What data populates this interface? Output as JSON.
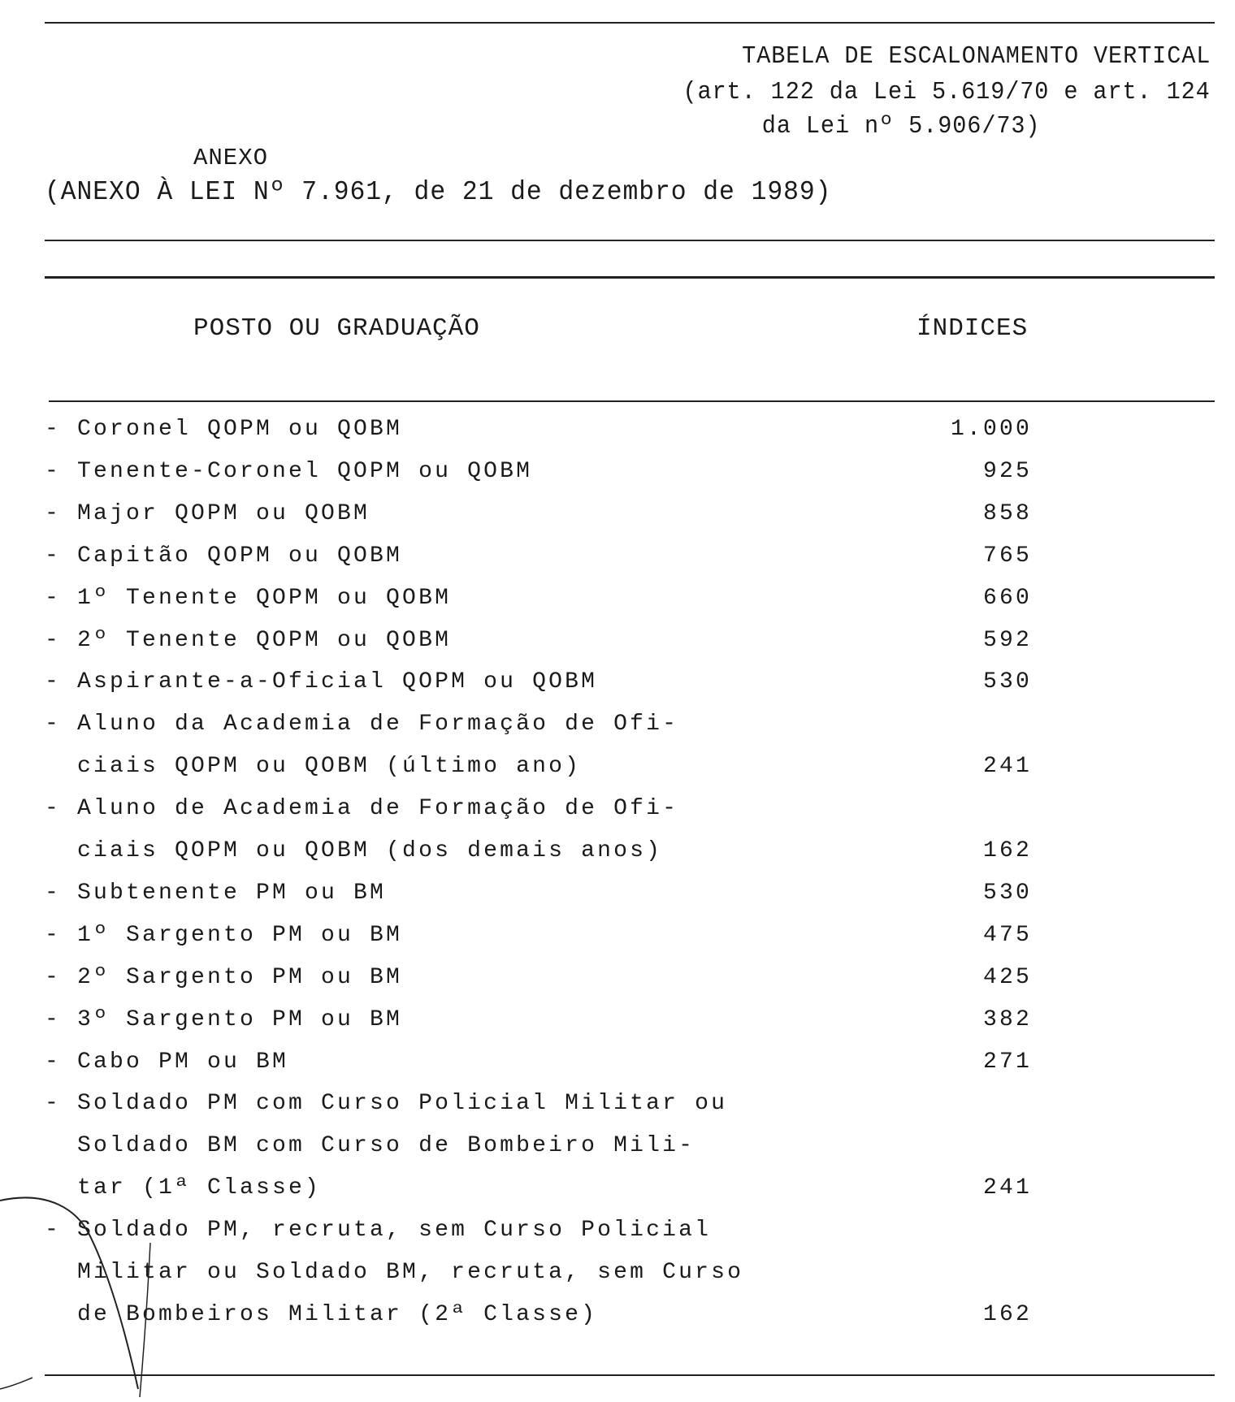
{
  "header": {
    "title": "TABELA DE ESCALONAMENTO VERTICAL",
    "subtitle_line1": "(art. 122 da Lei 5.619/70 e art. 124",
    "subtitle_line2": "da Lei nº 5.906/73)",
    "annex": "ANEXO",
    "annex_reference": "(ANEXO À LEI Nº 7.961, de 21 de dezembro de 1989)"
  },
  "table": {
    "columns": [
      "POSTO OU GRADUAÇÃO",
      "ÍNDICES"
    ],
    "rows": [
      {
        "lines": [
          "- Coronel QOPM ou QOBM"
        ],
        "index": "1.000"
      },
      {
        "lines": [
          "- Tenente-Coronel QOPM ou QOBM"
        ],
        "index": "925"
      },
      {
        "lines": [
          "- Major QOPM ou QOBM"
        ],
        "index": "858"
      },
      {
        "lines": [
          "- Capitão QOPM ou QOBM"
        ],
        "index": "765"
      },
      {
        "lines": [
          "- 1º Tenente QOPM ou QOBM"
        ],
        "index": "660"
      },
      {
        "lines": [
          "- 2º Tenente QOPM ou QOBM"
        ],
        "index": "592"
      },
      {
        "lines": [
          "- Aspirante-a-Oficial QOPM ou QOBM"
        ],
        "index": "530"
      },
      {
        "lines": [
          "- Aluno da Academia de Formação de Ofi-",
          "  ciais QOPM ou QOBM (último ano)"
        ],
        "index": "241"
      },
      {
        "lines": [
          "- Aluno de Academia de Formação de Ofi-",
          "  ciais QOPM ou QOBM (dos demais anos)"
        ],
        "index": "162"
      },
      {
        "lines": [
          "- Subtenente PM ou BM"
        ],
        "index": "530"
      },
      {
        "lines": [
          "- 1º Sargento PM ou BM"
        ],
        "index": "475"
      },
      {
        "lines": [
          "- 2º Sargento PM ou BM"
        ],
        "index": "425"
      },
      {
        "lines": [
          "- 3º Sargento PM ou BM"
        ],
        "index": "382"
      },
      {
        "lines": [
          "- Cabo PM ou BM"
        ],
        "index": "271"
      },
      {
        "lines": [
          "- Soldado PM com Curso Policial Militar ou",
          "  Soldado BM com Curso de Bombeiro Mili-",
          "  tar (1ª Classe)"
        ],
        "index": "241"
      },
      {
        "lines": [
          "- Soldado PM, recruta, sem Curso Policial",
          "  Militar ou Soldado BM, recruta, sem Curso",
          "  de Bombeiros Militar (2ª Classe)"
        ],
        "index": "162"
      }
    ]
  }
}
